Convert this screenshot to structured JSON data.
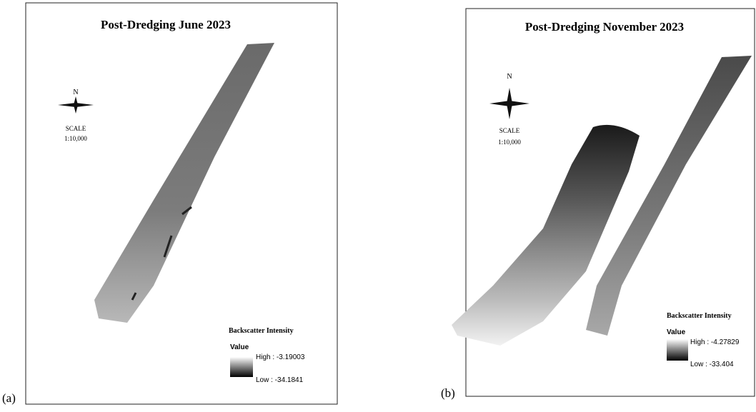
{
  "panels": [
    {
      "label": "(a)",
      "title": "Post-Dredging June 2023",
      "north": "N",
      "scale_label": "SCALE",
      "scale": "1:10,000",
      "legend": {
        "title": "Backscatter Intensity",
        "subtitle": "Value",
        "high": "High : -3.19003",
        "low": "Low : -34.1841"
      }
    },
    {
      "label": "(b)",
      "title": "Post-Dredging November 2023",
      "north": "N",
      "scale_label": "SCALE",
      "scale": "1:10,000",
      "legend": {
        "title": "Backscatter Intensity",
        "subtitle": "Value",
        "high": "High : -4.27829",
        "low": "Low : -33.404"
      }
    }
  ]
}
